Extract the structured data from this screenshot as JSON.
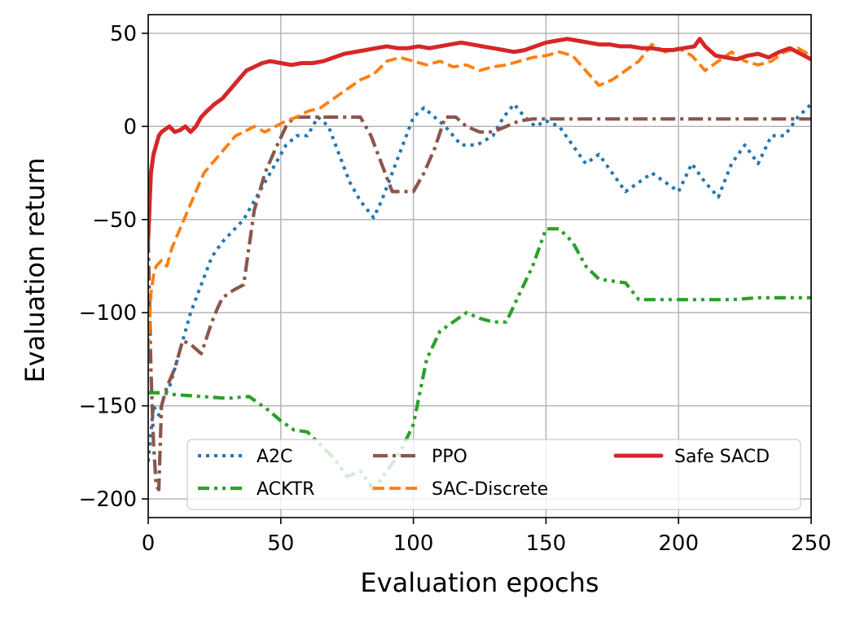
{
  "chart_data": {
    "type": "line",
    "title": "",
    "xlabel": "Evaluation epochs",
    "ylabel": "Evaluation return",
    "xlim": [
      0,
      250
    ],
    "ylim": [
      -210,
      60
    ],
    "xticks": [
      0,
      50,
      100,
      150,
      200,
      250
    ],
    "yticks": [
      -200,
      -150,
      -100,
      -50,
      0,
      50
    ],
    "xtick_labels": [
      "0",
      "50",
      "100",
      "150",
      "200",
      "250"
    ],
    "ytick_labels": [
      "−200",
      "−150",
      "−100",
      "−50",
      "0",
      "50"
    ],
    "grid": true,
    "legend_location": "lower-right",
    "series": [
      {
        "name": "A2C",
        "color": "#1f77b4",
        "style": "dotted",
        "x": [
          0,
          2,
          4,
          6,
          8,
          10,
          13,
          16,
          20,
          24,
          28,
          32,
          36,
          40,
          44,
          48,
          52,
          56,
          60,
          64,
          68,
          72,
          76,
          80,
          85,
          88,
          92,
          96,
          100,
          104,
          108,
          112,
          118,
          124,
          130,
          134,
          138,
          142,
          146,
          150,
          155,
          160,
          165,
          170,
          175,
          180,
          185,
          190,
          195,
          200,
          205,
          210,
          215,
          220,
          225,
          230,
          235,
          240,
          245,
          250
        ],
        "y": [
          -180,
          -150,
          -155,
          -145,
          -140,
          -130,
          -115,
          -100,
          -85,
          -70,
          -62,
          -56,
          -50,
          -40,
          -30,
          -20,
          -10,
          -5,
          -5,
          5,
          0,
          -15,
          -30,
          -40,
          -49,
          -40,
          -25,
          -10,
          5,
          10,
          5,
          0,
          -10,
          -10,
          -5,
          5,
          12,
          5,
          0,
          3,
          0,
          -10,
          -20,
          -15,
          -25,
          -35,
          -30,
          -25,
          -30,
          -35,
          -20,
          -30,
          -38,
          -20,
          -10,
          -20,
          -5,
          -5,
          5,
          12
        ]
      },
      {
        "name": "ACKTR",
        "color": "#2ca02c",
        "style": "dashdotdot",
        "x": [
          0,
          5,
          10,
          20,
          30,
          38,
          45,
          50,
          55,
          60,
          70,
          75,
          80,
          85,
          90,
          95,
          100,
          105,
          110,
          115,
          120,
          125,
          130,
          135,
          140,
          145,
          150,
          155,
          160,
          165,
          170,
          175,
          180,
          185,
          190,
          200,
          210,
          220,
          230,
          240,
          250
        ],
        "y": [
          -143,
          -143,
          -144,
          -145,
          -146,
          -145,
          -152,
          -158,
          -163,
          -164,
          -178,
          -188,
          -185,
          -195,
          -185,
          -175,
          -160,
          -125,
          -110,
          -105,
          -100,
          -103,
          -105,
          -105,
          -90,
          -75,
          -55,
          -55,
          -62,
          -75,
          -82,
          -83,
          -84,
          -93,
          -93,
          -93,
          -93,
          -93,
          -92,
          -92,
          -92
        ]
      },
      {
        "name": "PPO",
        "color": "#8c564b",
        "style": "dashdot",
        "x": [
          0,
          1,
          2,
          3,
          4,
          5,
          7,
          10,
          13,
          16,
          20,
          24,
          26,
          28,
          32,
          36,
          40,
          44,
          48,
          52,
          55,
          60,
          70,
          80,
          84,
          88,
          92,
          96,
          100,
          104,
          108,
          112,
          116,
          120,
          125,
          130,
          135,
          140,
          145,
          150,
          160,
          180,
          200,
          220,
          240,
          250
        ],
        "y": [
          -60,
          -130,
          -170,
          -193,
          -195,
          -150,
          -140,
          -130,
          -115,
          -117,
          -122,
          -105,
          -98,
          -92,
          -88,
          -85,
          -45,
          -25,
          -12,
          0,
          5,
          5,
          5,
          5,
          -5,
          -20,
          -35,
          -35,
          -35,
          -25,
          -12,
          5,
          5,
          0,
          -3,
          -3,
          0,
          3,
          4,
          4,
          4,
          4,
          4,
          4,
          4,
          4
        ]
      },
      {
        "name": "SAC-Discrete",
        "color": "#ff7f0e",
        "style": "dashed",
        "x": [
          0,
          1,
          2,
          3,
          5,
          7,
          9,
          12,
          15,
          18,
          21,
          24,
          27,
          30,
          33,
          36,
          40,
          44,
          48,
          52,
          56,
          60,
          65,
          70,
          75,
          80,
          85,
          90,
          95,
          100,
          105,
          110,
          115,
          120,
          125,
          130,
          135,
          140,
          145,
          150,
          155,
          160,
          165,
          170,
          175,
          180,
          185,
          190,
          195,
          200,
          205,
          210,
          215,
          220,
          225,
          230,
          235,
          240,
          245,
          250
        ],
        "y": [
          -120,
          -90,
          -80,
          -75,
          -72,
          -75,
          -65,
          -55,
          -45,
          -35,
          -25,
          -20,
          -15,
          -10,
          -5,
          -3,
          0,
          -3,
          0,
          3,
          5,
          8,
          10,
          15,
          20,
          25,
          28,
          35,
          37,
          35,
          33,
          35,
          32,
          33,
          30,
          32,
          33,
          35,
          37,
          38,
          40,
          38,
          30,
          22,
          25,
          30,
          35,
          44,
          40,
          42,
          38,
          30,
          35,
          40,
          35,
          33,
          35,
          40,
          42,
          38
        ]
      },
      {
        "name": "Safe SACD",
        "color": "#d62728",
        "style": "solid",
        "x": [
          0,
          1,
          2,
          3,
          4,
          5,
          6,
          8,
          10,
          12,
          14,
          16,
          18,
          20,
          22,
          25,
          28,
          31,
          34,
          37,
          40,
          43,
          46,
          50,
          54,
          58,
          62,
          66,
          70,
          74,
          78,
          82,
          86,
          90,
          94,
          98,
          102,
          106,
          110,
          114,
          118,
          122,
          126,
          130,
          134,
          138,
          142,
          146,
          150,
          154,
          158,
          162,
          166,
          170,
          174,
          178,
          182,
          186,
          190,
          194,
          198,
          202,
          206,
          208,
          210,
          214,
          218,
          222,
          226,
          230,
          234,
          238,
          242,
          246,
          250
        ],
        "y": [
          -60,
          -25,
          -15,
          -10,
          -5,
          -3,
          -2,
          0,
          -3,
          -2,
          0,
          -3,
          0,
          5,
          8,
          12,
          15,
          20,
          25,
          30,
          32,
          34,
          35,
          34,
          33,
          34,
          34,
          35,
          37,
          39,
          40,
          41,
          42,
          43,
          42,
          42,
          43,
          42,
          43,
          44,
          45,
          44,
          43,
          42,
          41,
          40,
          41,
          43,
          45,
          46,
          47,
          46,
          45,
          44,
          44,
          43,
          43,
          42,
          42,
          41,
          41,
          42,
          43,
          47,
          43,
          38,
          37,
          36,
          38,
          39,
          37,
          40,
          42,
          39,
          36
        ]
      }
    ]
  }
}
